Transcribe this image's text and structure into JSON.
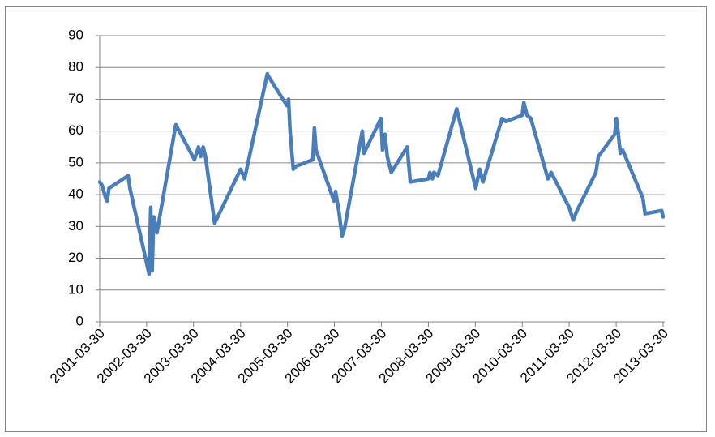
{
  "chart_data": {
    "type": "line",
    "x": [
      "2001-03-30",
      "2001-04-17",
      "2001-05-15",
      "2001-05-27",
      "2001-06-10",
      "2001-11-06",
      "2001-11-20",
      "2002-04-18",
      "2002-05-01",
      "2002-05-12",
      "2002-05-24",
      "2002-06-18",
      "2002-11-12",
      "2003-04-06",
      "2003-05-07",
      "2003-05-25",
      "2003-06-13",
      "2003-07-01",
      "2003-09-10",
      "2004-03-30",
      "2004-04-30",
      "2004-10-24",
      "2004-11-05",
      "2005-03-26",
      "2005-04-07",
      "2005-04-19",
      "2005-05-14",
      "2005-06-07",
      "2005-10-13",
      "2005-10-25",
      "2005-11-07",
      "2006-03-27",
      "2006-04-08",
      "2006-05-03",
      "2006-05-28",
      "2006-06-15",
      "2006-11-02",
      "2006-11-14",
      "2007-03-27",
      "2007-04-08",
      "2007-04-27",
      "2007-05-15",
      "2007-06-15",
      "2007-10-17",
      "2007-11-10",
      "2008-03-30",
      "2008-04-11",
      "2008-04-30",
      "2008-05-12",
      "2008-06-12",
      "2008-11-05",
      "2009-04-02",
      "2009-05-03",
      "2009-05-28",
      "2009-10-24",
      "2009-11-23",
      "2010-03-30",
      "2010-04-11",
      "2010-05-06",
      "2010-06-05",
      "2010-10-16",
      "2010-11-10",
      "2011-03-30",
      "2011-04-30",
      "2011-05-30",
      "2011-10-24",
      "2011-11-12",
      "2012-03-19",
      "2012-03-31",
      "2012-04-13",
      "2012-05-01",
      "2012-05-20",
      "2012-10-23",
      "2012-11-10",
      "2013-03-19",
      "2013-03-30"
    ],
    "series": [
      {
        "color": "#4a7ebb",
        "values": [
          44,
          43,
          39,
          38,
          42,
          46,
          42,
          15,
          36,
          16,
          33,
          28,
          62,
          51,
          55,
          52,
          55,
          52,
          31,
          48,
          45,
          78,
          77,
          68,
          70,
          60,
          48,
          49,
          51,
          61,
          54,
          38,
          41,
          35,
          27,
          29,
          60,
          53,
          64,
          54,
          59,
          52,
          47,
          55,
          44,
          45,
          47,
          45,
          47,
          46,
          67,
          42,
          48,
          44,
          64,
          63,
          65,
          69,
          65,
          64,
          45,
          47,
          36,
          32,
          35,
          47,
          52,
          59,
          64,
          60,
          53,
          54,
          39,
          34,
          35,
          33
        ]
      }
    ],
    "xlim": [
      "2001-03-30",
      "2013-03-30"
    ],
    "xticks": [
      "2001-03-30",
      "2002-03-30",
      "2003-03-30",
      "2004-03-30",
      "2005-03-30",
      "2006-03-30",
      "2007-03-30",
      "2008-03-30",
      "2009-03-30",
      "2010-03-30",
      "2011-03-30",
      "2012-03-30",
      "2013-03-30"
    ],
    "ylim": [
      0,
      90
    ],
    "yticks": [
      0,
      10,
      20,
      30,
      40,
      50,
      60,
      70,
      80,
      90
    ],
    "grid": true
  }
}
